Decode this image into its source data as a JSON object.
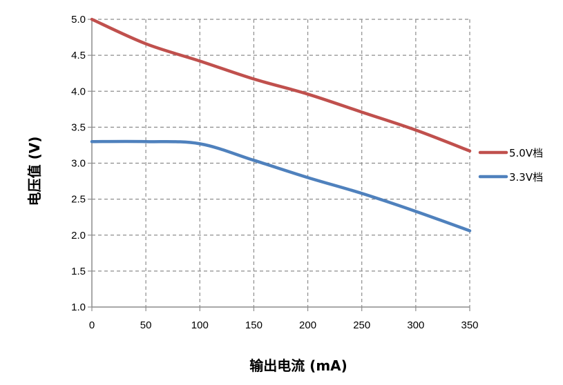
{
  "chart_data": {
    "type": "line",
    "title": "",
    "xlabel": "输出电流 (mA)",
    "ylabel": "电压值 (V)",
    "xlim": [
      0,
      350
    ],
    "ylim": [
      1.0,
      5.0
    ],
    "x_ticks": [
      "0",
      "50",
      "100",
      "150",
      "200",
      "250",
      "300",
      "350"
    ],
    "y_ticks": [
      "1.0",
      "1.5",
      "2.0",
      "2.5",
      "3.0",
      "3.5",
      "4.0",
      "4.5",
      "5.0"
    ],
    "grid": true,
    "grid_style": "dashed",
    "legend_position": "right",
    "x": [
      0,
      50,
      100,
      150,
      200,
      250,
      300,
      350
    ],
    "series": [
      {
        "name": "5.0V档",
        "color": "#C0504D",
        "values": [
          5.0,
          4.66,
          4.42,
          4.17,
          3.96,
          3.71,
          3.46,
          3.17
        ]
      },
      {
        "name": "3.3V档",
        "color": "#4F81BD",
        "values": [
          3.3,
          3.3,
          3.27,
          3.04,
          2.8,
          2.58,
          2.33,
          2.06
        ]
      }
    ]
  }
}
